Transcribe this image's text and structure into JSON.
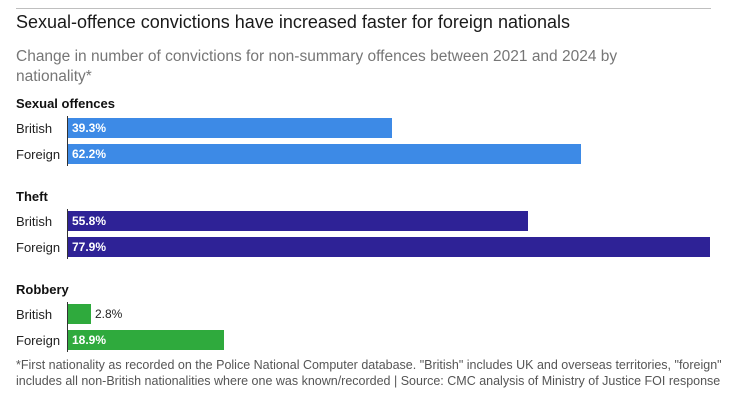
{
  "title": "Sexual-offence convictions have increased faster for foreign nationals",
  "subtitle": "Change in number of convictions for non-summary offences between 2021 and 2024 by nationality*",
  "footnote": "*First nationality as recorded on the Police National Computer database. \"British\" includes UK and overseas territories, \"foreign\" includes all non-British nationalities where one was known/recorded | Source: CMC analysis of Ministry of Justice FOI response",
  "chart_data": {
    "type": "bar",
    "orientation": "horizontal",
    "unit": "%",
    "xlim": [
      0,
      77.9
    ],
    "groups": [
      {
        "name": "Sexual offences",
        "color": "#3d8ae6",
        "bars": [
          {
            "category": "British",
            "value": 39.3,
            "label": "39.3%"
          },
          {
            "category": "Foreign",
            "value": 62.2,
            "label": "62.2%"
          }
        ]
      },
      {
        "name": "Theft",
        "color": "#2e2296",
        "bars": [
          {
            "category": "British",
            "value": 55.8,
            "label": "55.8%"
          },
          {
            "category": "Foreign",
            "value": 77.9,
            "label": "77.9%"
          }
        ]
      },
      {
        "name": "Robbery",
        "color": "#2faa3d",
        "bars": [
          {
            "category": "British",
            "value": 2.8,
            "label": "2.8%"
          },
          {
            "category": "Foreign",
            "value": 18.9,
            "label": "18.9%"
          }
        ]
      }
    ]
  }
}
